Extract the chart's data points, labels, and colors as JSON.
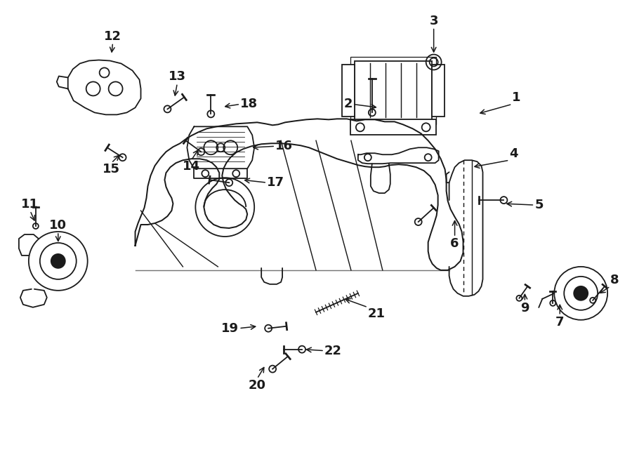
{
  "bg_color": "#ffffff",
  "line_color": "#1a1a1a",
  "fig_width": 9.0,
  "fig_height": 6.61,
  "dpi": 100,
  "label_configs": [
    [
      "1",
      730,
      148,
      680,
      162,
      "left"
    ],
    [
      "2",
      502,
      148,
      540,
      153,
      "right"
    ],
    [
      "3",
      618,
      38,
      618,
      78,
      "center"
    ],
    [
      "4",
      726,
      228,
      672,
      238,
      "left"
    ],
    [
      "5",
      762,
      292,
      718,
      290,
      "left"
    ],
    [
      "6",
      648,
      338,
      648,
      310,
      "center"
    ],
    [
      "7",
      798,
      450,
      798,
      430,
      "center"
    ],
    [
      "8",
      870,
      408,
      852,
      420,
      "left"
    ],
    [
      "9",
      748,
      430,
      748,
      415,
      "center"
    ],
    [
      "10",
      82,
      330,
      82,
      348,
      "center"
    ],
    [
      "11",
      42,
      300,
      50,
      318,
      "center"
    ],
    [
      "12",
      160,
      60,
      158,
      78,
      "center"
    ],
    [
      "13",
      252,
      118,
      248,
      140,
      "center"
    ],
    [
      "14",
      272,
      228,
      284,
      210,
      "center"
    ],
    [
      "15",
      158,
      232,
      172,
      218,
      "center"
    ],
    [
      "16",
      392,
      208,
      356,
      210,
      "left"
    ],
    [
      "17",
      380,
      260,
      344,
      256,
      "left"
    ],
    [
      "18",
      342,
      148,
      316,
      152,
      "left"
    ],
    [
      "19",
      340,
      468,
      368,
      465,
      "right"
    ],
    [
      "20",
      366,
      540,
      378,
      520,
      "center"
    ],
    [
      "21",
      524,
      438,
      488,
      425,
      "left"
    ],
    [
      "22",
      462,
      500,
      432,
      498,
      "left"
    ]
  ]
}
